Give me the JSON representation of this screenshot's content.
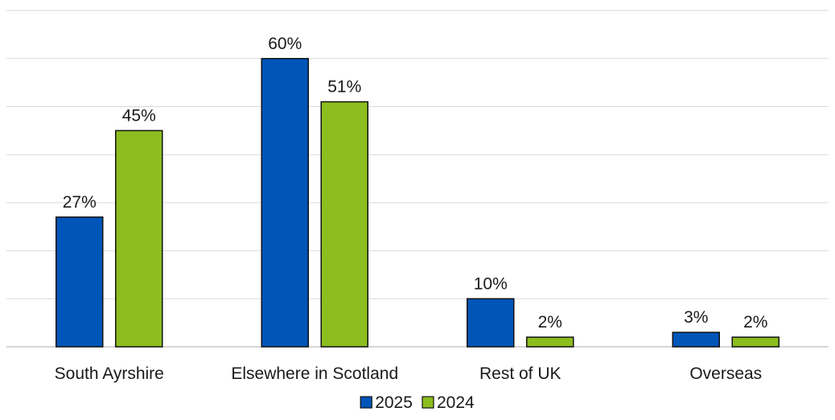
{
  "chart_data": {
    "type": "bar",
    "categories": [
      "South Ayrshire",
      "Elsewhere in Scotland",
      "Rest of UK",
      "Overseas"
    ],
    "series": [
      {
        "name": "2025",
        "values": [
          27,
          60,
          10,
          3
        ],
        "labels": [
          "27%",
          "60%",
          "10%",
          "3%"
        ],
        "color": "#0055b8"
      },
      {
        "name": "2024",
        "values": [
          45,
          51,
          2,
          2
        ],
        "labels": [
          "45%",
          "51%",
          "2%",
          "2%"
        ],
        "color": "#8cbd1f"
      }
    ],
    "ylim": [
      0,
      70
    ],
    "grid": true,
    "legend_position": "bottom"
  }
}
